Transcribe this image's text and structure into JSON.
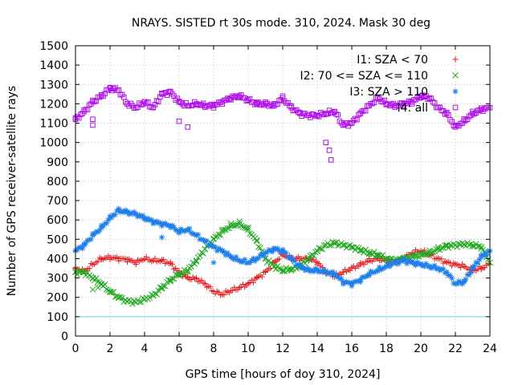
{
  "chart_data": {
    "type": "scatter",
    "title": "NRAYS. SISTED rt 30s mode. 310, 2024. Mask 30 deg",
    "xlabel": "GPS time [hours of doy 310, 2024]",
    "ylabel": "Number of GPS receiver-satellite rays",
    "xlim": [
      0,
      24
    ],
    "ylim": [
      0,
      1500
    ],
    "x_ticks": [
      "0",
      "2",
      "4",
      "6",
      "8",
      "10",
      "12",
      "14",
      "16",
      "18",
      "20",
      "22",
      "24"
    ],
    "y_ticks": [
      "0",
      "100",
      "200",
      "300",
      "400",
      "500",
      "600",
      "700",
      "800",
      "900",
      "1000",
      "1100",
      "1200",
      "1300",
      "1400",
      "1500"
    ],
    "grid": true,
    "legend_position": "top-right",
    "reference_line": {
      "y": 100,
      "color": "#5fd3e6"
    },
    "series": [
      {
        "name": "I1: SZA < 70",
        "marker": "+",
        "color": "#e41a1c",
        "x": [
          0,
          0.5,
          1,
          1.5,
          2,
          2.5,
          3,
          3.5,
          4,
          4.5,
          5,
          5.5,
          6,
          6.5,
          7,
          7.5,
          8,
          8.5,
          9,
          9.5,
          10,
          10.5,
          11,
          11.5,
          12,
          12.5,
          13,
          13.5,
          14,
          14.5,
          15,
          15.5,
          16,
          16.5,
          17,
          17.5,
          18,
          18.5,
          19,
          19.5,
          20,
          20.5,
          21,
          21.5,
          22,
          22.5,
          23,
          23.5,
          24
        ],
        "y": [
          350,
          335,
          370,
          400,
          405,
          400,
          395,
          380,
          400,
          390,
          390,
          375,
          330,
          300,
          295,
          270,
          230,
          215,
          235,
          250,
          270,
          300,
          330,
          380,
          420,
          400,
          400,
          400,
          380,
          330,
          310,
          330,
          350,
          370,
          390,
          400,
          390,
          380,
          400,
          430,
          440,
          420,
          400,
          380,
          370,
          360,
          340,
          350,
          370
        ]
      },
      {
        "name": "I2: 70 <= SZA <= 110",
        "marker": "x",
        "color": "#22a822",
        "x": [
          0,
          0.5,
          1,
          1.5,
          2,
          2.5,
          3,
          3.5,
          4,
          4.5,
          5,
          5.5,
          6,
          6.5,
          7,
          7.5,
          8,
          8.5,
          9,
          9.5,
          10,
          10.5,
          11,
          11.5,
          12,
          12.5,
          13,
          13.5,
          14,
          14.5,
          15,
          15.5,
          16,
          16.5,
          17,
          17.5,
          18,
          18.5,
          19,
          19.5,
          20,
          20.5,
          21,
          21.5,
          22,
          22.5,
          23,
          23.5,
          24
        ],
        "y": [
          330,
          330,
          300,
          270,
          230,
          200,
          180,
          175,
          190,
          210,
          250,
          290,
          320,
          340,
          390,
          450,
          500,
          540,
          570,
          580,
          550,
          490,
          400,
          360,
          340,
          345,
          360,
          400,
          440,
          470,
          480,
          470,
          460,
          445,
          430,
          420,
          400,
          390,
          400,
          410,
          420,
          430,
          450,
          465,
          470,
          475,
          470,
          460,
          380
        ]
      },
      {
        "name": "I3: SZA > 110",
        "marker": "*",
        "color": "#1e7eea",
        "x": [
          0,
          0.5,
          1,
          1.5,
          2,
          2.5,
          3,
          3.5,
          4,
          4.5,
          5,
          5.5,
          6,
          6.5,
          7,
          7.5,
          8,
          8.5,
          9,
          9.5,
          10,
          10.5,
          11,
          11.5,
          12,
          12.5,
          13,
          13.5,
          14,
          14.5,
          15,
          15.5,
          16,
          16.5,
          17,
          17.5,
          18,
          18.5,
          19,
          19.5,
          20,
          20.5,
          21,
          21.5,
          22,
          22.5,
          23,
          23.5,
          24
        ],
        "y": [
          440,
          470,
          520,
          560,
          610,
          650,
          640,
          630,
          610,
          590,
          580,
          570,
          540,
          550,
          520,
          490,
          460,
          440,
          410,
          390,
          380,
          400,
          430,
          450,
          440,
          400,
          360,
          340,
          340,
          330,
          320,
          280,
          270,
          290,
          320,
          340,
          360,
          380,
          390,
          380,
          370,
          360,
          350,
          330,
          270,
          280,
          350,
          410,
          440
        ]
      },
      {
        "name": "I4: all",
        "marker": "square",
        "color": "#b010e8",
        "x": [
          0,
          0.5,
          1,
          1.5,
          2,
          2.5,
          3,
          3.5,
          4,
          4.5,
          5,
          5.5,
          6,
          6.5,
          7,
          7.5,
          8,
          8.5,
          9,
          9.5,
          10,
          10.5,
          11,
          11.5,
          12,
          12.5,
          13,
          13.5,
          14,
          14.5,
          15,
          15.5,
          16,
          16.5,
          17,
          17.5,
          18,
          18.5,
          19,
          19.5,
          20,
          20.5,
          21,
          21.5,
          22,
          22.5,
          23,
          23.5,
          24
        ],
        "y": [
          1120,
          1160,
          1210,
          1240,
          1280,
          1270,
          1200,
          1180,
          1210,
          1180,
          1250,
          1260,
          1210,
          1190,
          1200,
          1190,
          1190,
          1210,
          1230,
          1240,
          1220,
          1200,
          1200,
          1190,
          1230,
          1180,
          1150,
          1140,
          1140,
          1150,
          1160,
          1090,
          1100,
          1150,
          1190,
          1230,
          1200,
          1190,
          1200,
          1210,
          1240,
          1230,
          1180,
          1150,
          1080,
          1110,
          1150,
          1170,
          1180
        ]
      }
    ],
    "outliers": [
      {
        "series": "I4: all",
        "x": [
          1,
          1,
          6,
          6.5,
          14.5,
          14.7,
          14.8
        ],
        "y": [
          1090,
          1120,
          1110,
          1080,
          1000,
          960,
          910
        ]
      },
      {
        "series": "I2: 70 <= SZA <= 110",
        "x": [
          1,
          1.3
        ],
        "y": [
          240,
          250
        ]
      },
      {
        "series": "I3: SZA > 110",
        "x": [
          5,
          8
        ],
        "y": [
          510,
          380
        ]
      }
    ]
  }
}
